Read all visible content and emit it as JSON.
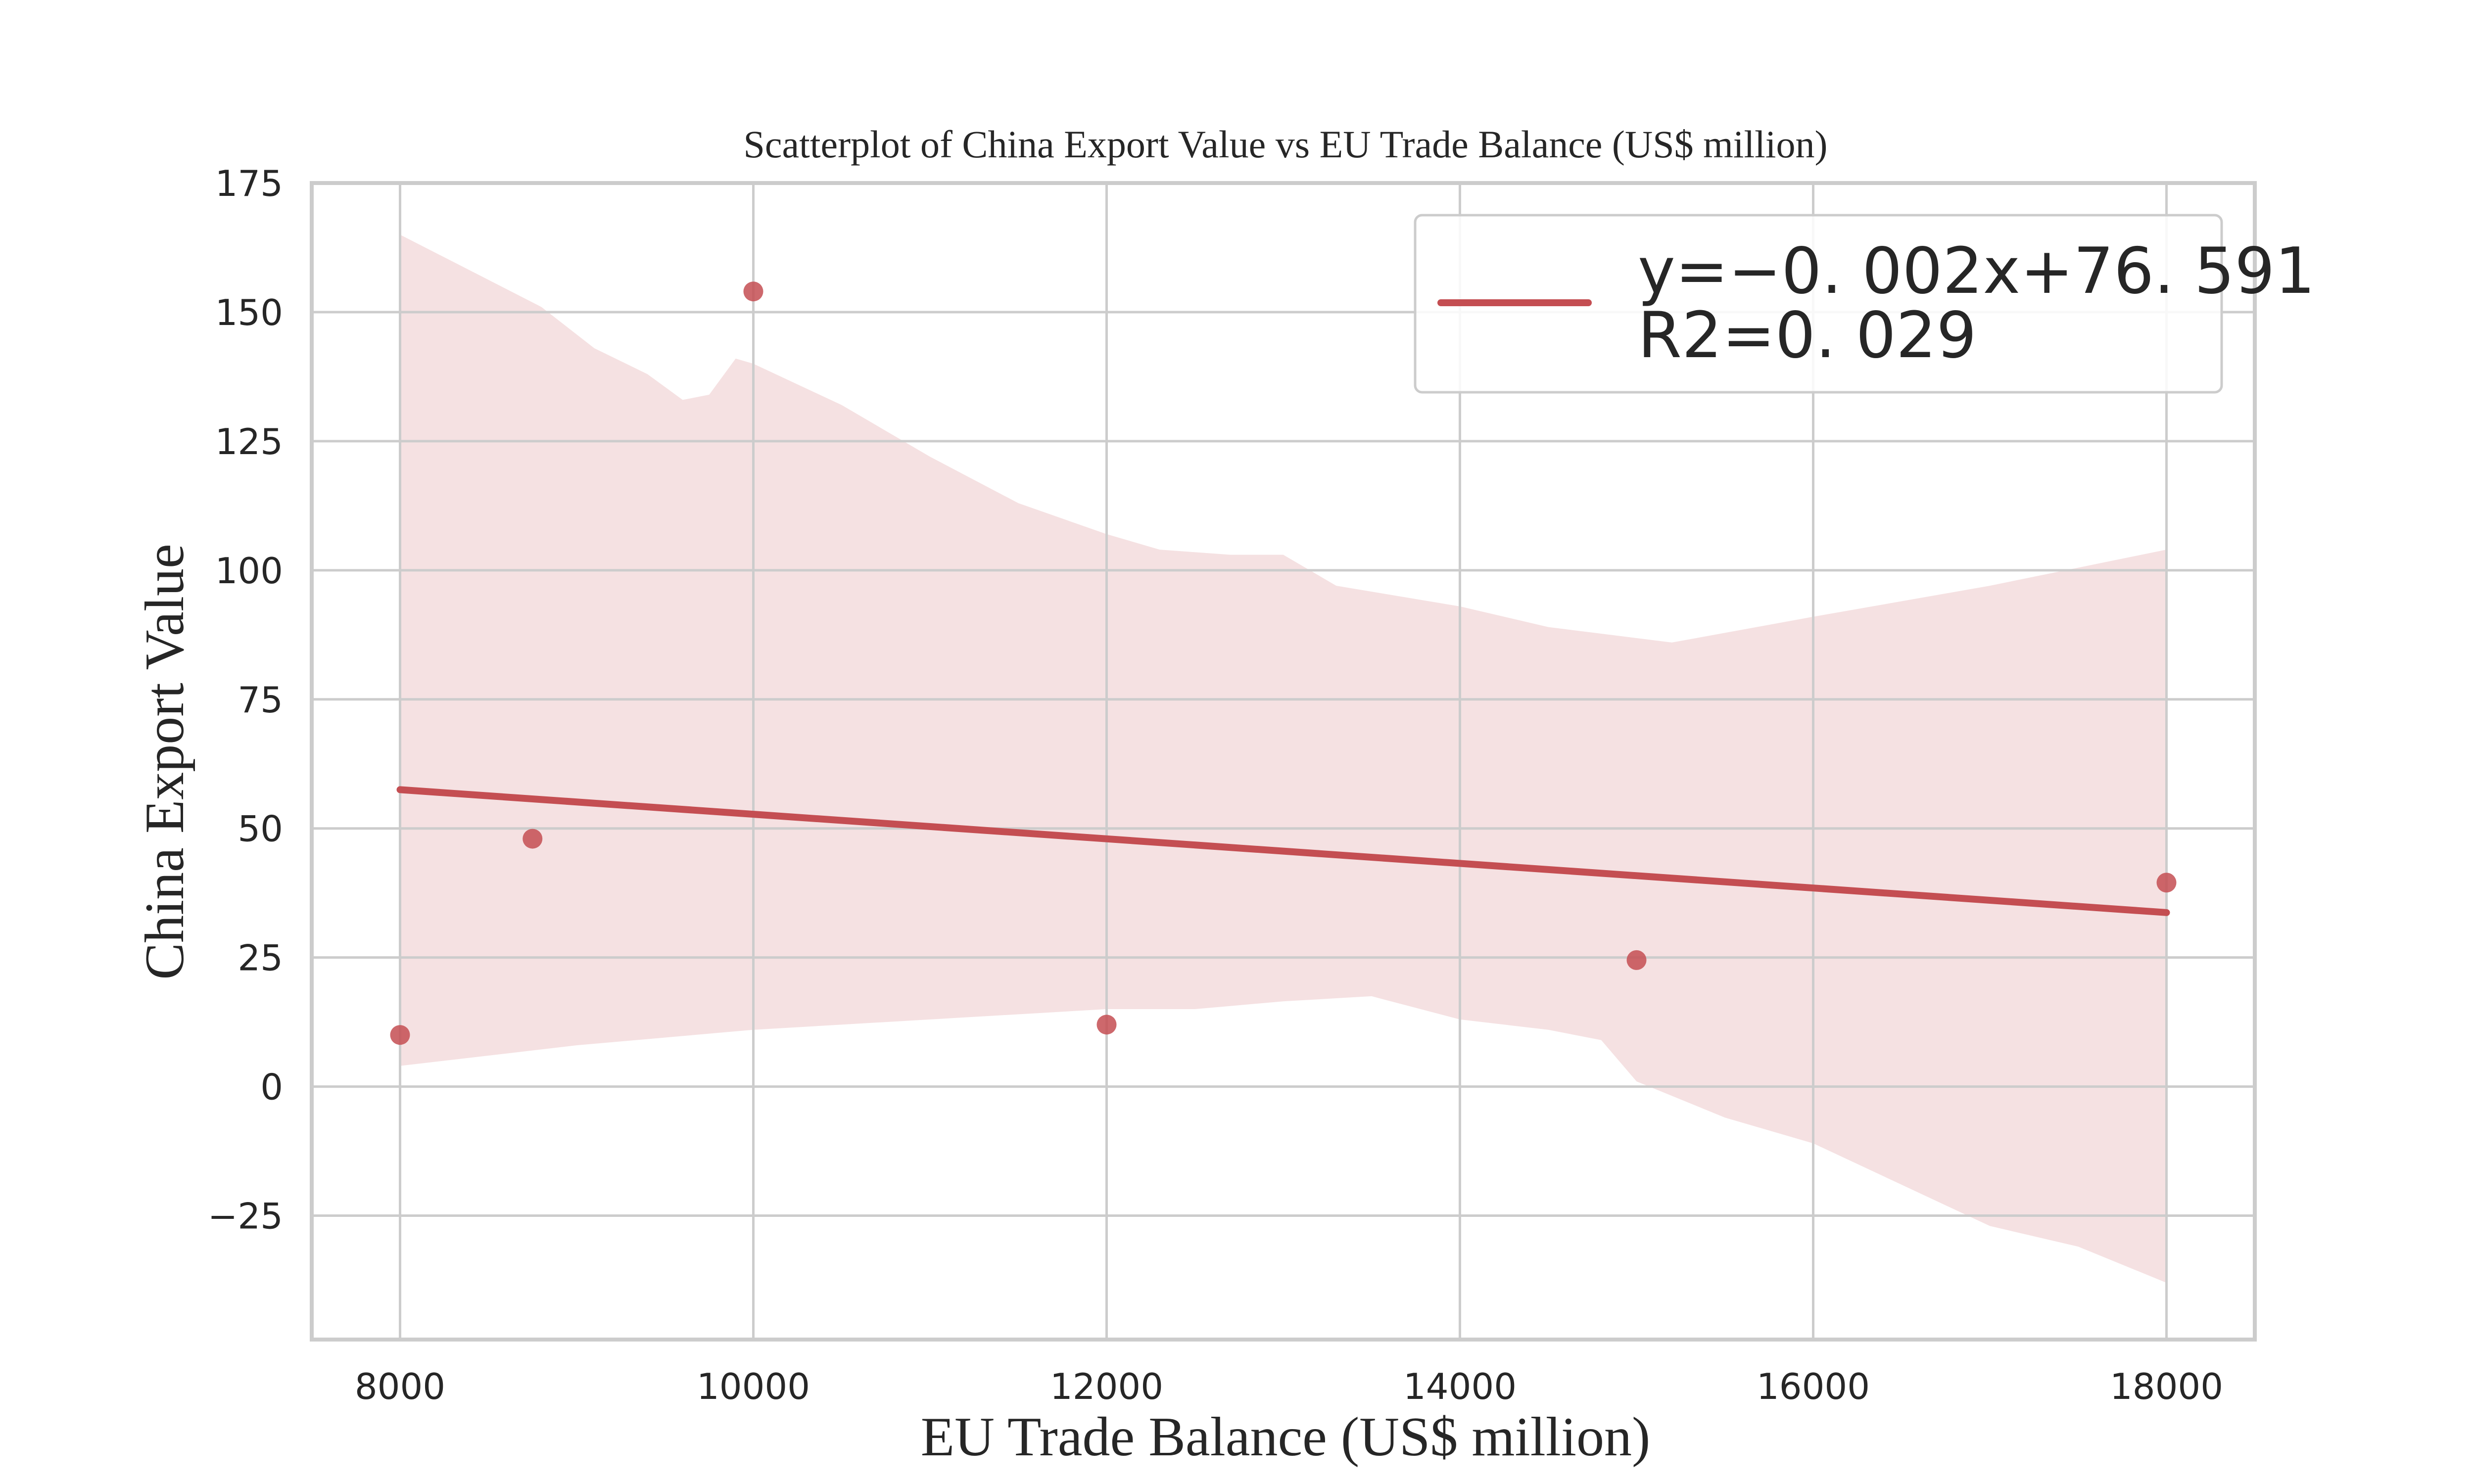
{
  "chart_data": {
    "type": "scatter",
    "title": "Scatterplot of China Export Value vs EU Trade Balance (US$ million)",
    "xlabel": "EU Trade Balance (US$ million)",
    "ylabel": "China Export Value",
    "xlim": [
      7500,
      18500
    ],
    "ylim": [
      -49,
      175
    ],
    "xticks": [
      8000,
      10000,
      12000,
      14000,
      16000,
      18000
    ],
    "xtick_labels": [
      "8000",
      "10000",
      "12000",
      "14000",
      "16000",
      "18000"
    ],
    "yticks": [
      -25,
      0,
      25,
      50,
      75,
      100,
      125,
      150,
      175
    ],
    "ytick_labels": [
      "−25",
      "0",
      "25",
      "50",
      "75",
      "100",
      "125",
      "150",
      "175"
    ],
    "grid": true,
    "legend_position": "top-right",
    "points": [
      {
        "x": 8000,
        "y": 10
      },
      {
        "x": 8750,
        "y": 48
      },
      {
        "x": 10000,
        "y": 154
      },
      {
        "x": 12000,
        "y": 12
      },
      {
        "x": 15000,
        "y": 24.5
      },
      {
        "x": 18000,
        "y": 39.5
      }
    ],
    "regression": {
      "label_line1": "y=−0. 002x+76. 591",
      "label_line2": "R2=0. 029",
      "x": [
        8000,
        18000
      ],
      "y": [
        57.5,
        33.7
      ]
    },
    "confidence_band": {
      "upper": [
        {
          "x": 8000,
          "y": 165
        },
        {
          "x": 8400,
          "y": 158
        },
        {
          "x": 8800,
          "y": 151
        },
        {
          "x": 9100,
          "y": 143
        },
        {
          "x": 9400,
          "y": 138
        },
        {
          "x": 9600,
          "y": 133
        },
        {
          "x": 9750,
          "y": 134
        },
        {
          "x": 9900,
          "y": 141
        },
        {
          "x": 10000,
          "y": 140
        },
        {
          "x": 10500,
          "y": 132
        },
        {
          "x": 11000,
          "y": 122
        },
        {
          "x": 11500,
          "y": 113
        },
        {
          "x": 12000,
          "y": 107
        },
        {
          "x": 12300,
          "y": 104
        },
        {
          "x": 12700,
          "y": 103
        },
        {
          "x": 13000,
          "y": 103
        },
        {
          "x": 13300,
          "y": 97
        },
        {
          "x": 14000,
          "y": 93
        },
        {
          "x": 14500,
          "y": 89
        },
        {
          "x": 15200,
          "y": 86
        },
        {
          "x": 16000,
          "y": 91
        },
        {
          "x": 17000,
          "y": 97
        },
        {
          "x": 18000,
          "y": 104
        }
      ],
      "lower": [
        {
          "x": 8000,
          "y": 4
        },
        {
          "x": 9000,
          "y": 8
        },
        {
          "x": 10000,
          "y": 11
        },
        {
          "x": 11000,
          "y": 13
        },
        {
          "x": 12000,
          "y": 15
        },
        {
          "x": 12500,
          "y": 15
        },
        {
          "x": 13000,
          "y": 16.5
        },
        {
          "x": 13500,
          "y": 17.5
        },
        {
          "x": 14000,
          "y": 13
        },
        {
          "x": 14500,
          "y": 11
        },
        {
          "x": 14800,
          "y": 9
        },
        {
          "x": 15000,
          "y": 1
        },
        {
          "x": 15500,
          "y": -6
        },
        {
          "x": 16000,
          "y": -11
        },
        {
          "x": 16500,
          "y": -19
        },
        {
          "x": 17000,
          "y": -27
        },
        {
          "x": 17500,
          "y": -31
        },
        {
          "x": 18000,
          "y": -38
        }
      ]
    },
    "colors": {
      "point": "#c44e52",
      "line": "#c44e52",
      "band": "#f5e1e2",
      "grid": "#cccccc",
      "frame": "#cccccc",
      "text": "#262626"
    }
  }
}
